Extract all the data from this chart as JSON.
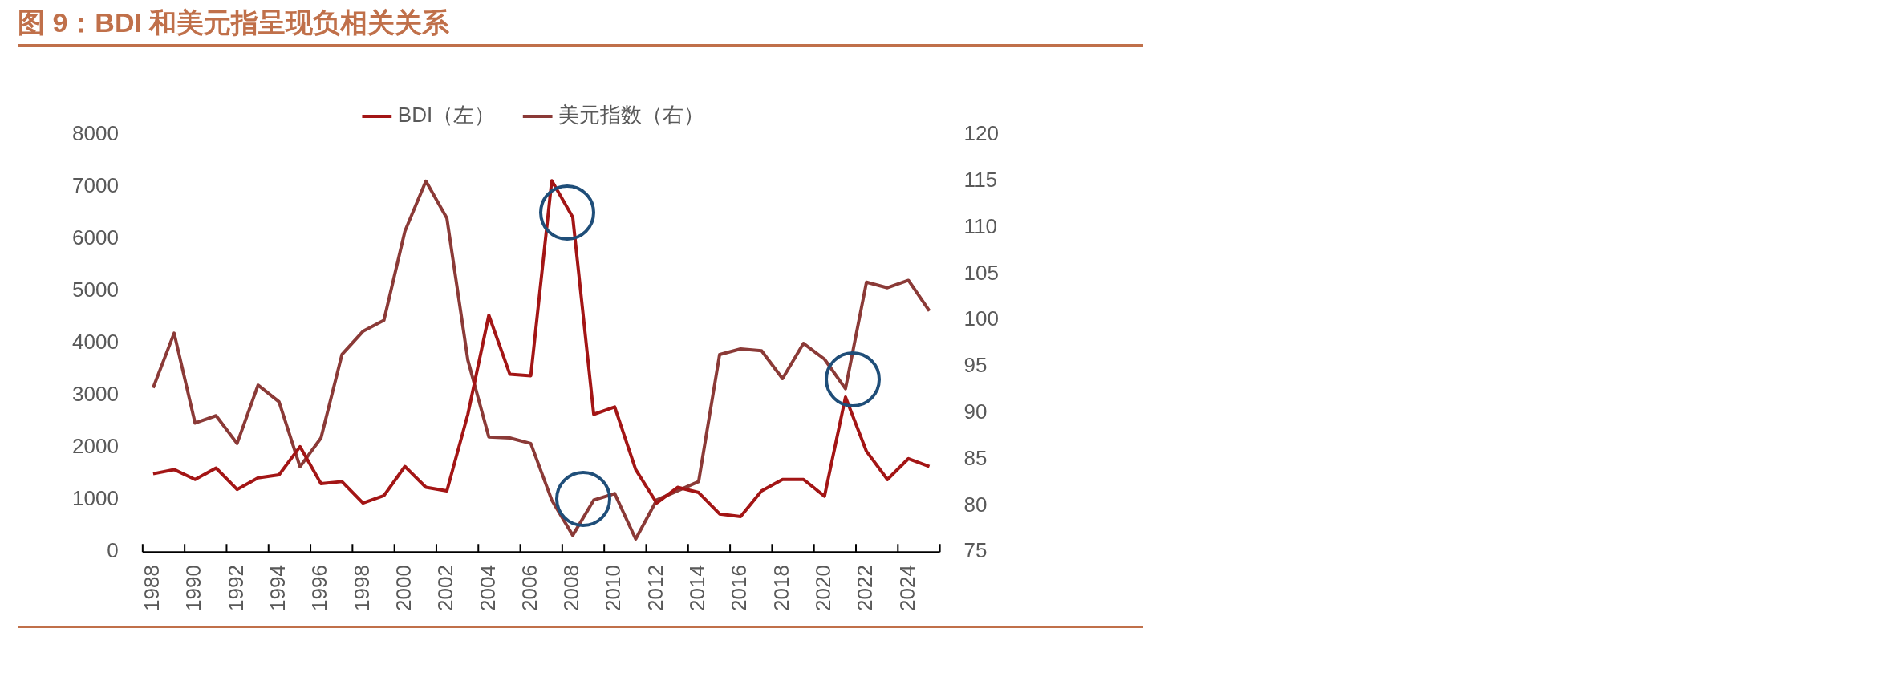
{
  "chart_data": {
    "type": "line",
    "title": "图 9：BDI 和美元指呈现负相关关系",
    "categories": [
      "1988",
      null,
      "1990",
      null,
      "1992",
      null,
      "1994",
      null,
      "1996",
      null,
      "1998",
      null,
      "2000",
      null,
      "2002",
      null,
      "2004",
      null,
      "2006",
      null,
      "2008",
      null,
      "2010",
      null,
      "2012",
      null,
      "2014",
      null,
      "2016",
      null,
      "2018",
      null,
      "2020",
      null,
      "2022",
      null,
      "2024",
      null
    ],
    "series": [
      {
        "name": "BDI（左）",
        "color": "#a31515",
        "values": [
          1500,
          1580,
          1390,
          1610,
          1200,
          1420,
          1480,
          2020,
          1310,
          1350,
          940,
          1080,
          1640,
          1240,
          1170,
          2640,
          4540,
          3410,
          3380,
          7120,
          6420,
          2640,
          2780,
          1580,
          940,
          1240,
          1140,
          730,
          680,
          1170,
          1390,
          1390,
          1070,
          2970,
          1930,
          1390,
          1790,
          1640
        ]
      },
      {
        "name": "美元指数（右）",
        "color": "#8b3a37",
        "axis": "y2",
        "values": [
          92.7,
          98.6,
          88.9,
          89.7,
          86.7,
          93.0,
          91.2,
          84.2,
          87.3,
          96.3,
          98.8,
          100.0,
          109.6,
          115.0,
          111.0,
          95.7,
          87.4,
          87.3,
          86.7,
          80.6,
          76.8,
          80.6,
          81.3,
          76.4,
          80.6,
          81.6,
          82.6,
          96.3,
          96.9,
          96.7,
          93.7,
          97.5,
          95.8,
          92.6,
          104.1,
          103.5,
          104.3,
          101.0
        ]
      }
    ],
    "ylim": [
      0,
      8000
    ],
    "yticks": [
      0,
      1000,
      2000,
      3000,
      4000,
      5000,
      6000,
      7000,
      8000
    ],
    "y2lim": [
      75,
      120
    ],
    "y2ticks": [
      75,
      80,
      85,
      90,
      95,
      100,
      105,
      110,
      115,
      120
    ],
    "legend": "top",
    "grid": false
  }
}
